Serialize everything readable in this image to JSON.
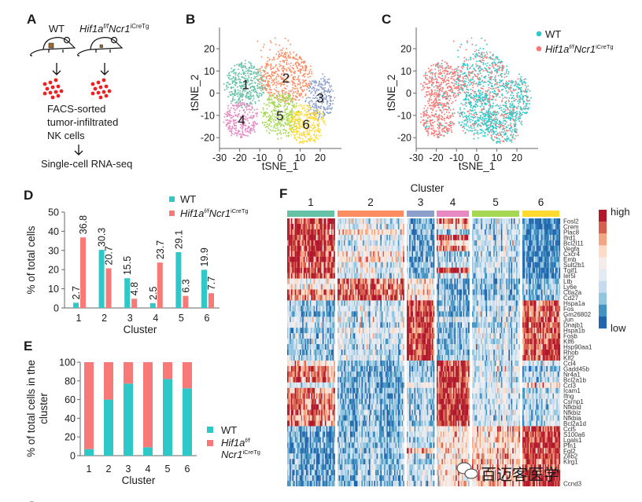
{
  "panel_labels": {
    "A": "A",
    "B": "B",
    "C": "C",
    "D": "D",
    "E": "E",
    "F": "F",
    "next": "C"
  },
  "colors": {
    "wt": "#2ec8c8",
    "mutant": "#f87a78",
    "clusters": [
      "#66c2a5",
      "#fc8d62",
      "#8da0cb",
      "#e78ac3",
      "#a6d854",
      "#ffd92f"
    ],
    "heat_scale": [
      "#b2182b",
      "#d6604d",
      "#f4a582",
      "#fddbc7",
      "#f5ece9",
      "#e3ebf2",
      "#c6dbef",
      "#92c5de",
      "#4393c3",
      "#2166ac"
    ]
  },
  "genotypes": {
    "wt": "WT",
    "mutant": {
      "gene": "Hif1a",
      "gene_sup": "f/f",
      "driver": "Ncr1",
      "driver_sup": "iCreTg"
    }
  },
  "workflow": {
    "step1_lines": [
      "FACS-sorted",
      "tumor-infiltrated",
      "NK cells"
    ],
    "step2": "Single-cell RNA-seq"
  },
  "chart_data": [
    {
      "panel": "B",
      "type": "scatter",
      "xlabel": "tSNE_1",
      "ylabel": "tSNE_2",
      "xticks": [
        -30,
        -20,
        -10,
        0,
        10,
        20
      ],
      "yticks": [
        20,
        10,
        0,
        -10,
        -20
      ],
      "xlim": [
        -30,
        30
      ],
      "ylim": [
        -25,
        30
      ],
      "color_by": "cluster",
      "cluster_labels": [
        "1",
        "2",
        "3",
        "4",
        "5",
        "6"
      ],
      "cluster_centers": [
        [
          -17,
          4
        ],
        [
          3,
          7
        ],
        [
          20,
          -2
        ],
        [
          -19,
          -12
        ],
        [
          0,
          -10
        ],
        [
          13,
          -14
        ]
      ]
    },
    {
      "panel": "C",
      "type": "scatter",
      "xlabel": "tSNE_1",
      "ylabel": "tSNE_2",
      "xticks": [
        -30,
        -20,
        -10,
        0,
        10,
        20
      ],
      "yticks": [
        20,
        10,
        0,
        -10,
        -20
      ],
      "xlim": [
        -30,
        30
      ],
      "ylim": [
        -25,
        30
      ],
      "color_by": "genotype",
      "legend": "top-right"
    },
    {
      "panel": "D",
      "type": "bar",
      "categories": [
        "1",
        "2",
        "3",
        "4",
        "5",
        "6"
      ],
      "series": [
        {
          "name": "WT",
          "values": [
            2.7,
            30.3,
            15.5,
            2.5,
            29.1,
            19.9
          ],
          "labels": [
            "2.7",
            "30.3",
            "15.5",
            "2.5",
            "29.1",
            "19.9"
          ]
        },
        {
          "name": "Hif1a f/f Ncr1 iCreTg",
          "values": [
            36.8,
            20.7,
            4.8,
            23.7,
            6.3,
            7.7
          ],
          "labels": [
            "36.8",
            "20.7",
            "4.8",
            "23.7",
            "6.3",
            "7.7"
          ]
        }
      ],
      "xlabel": "Cluster",
      "ylabel": "% of total cells",
      "ylim": [
        0,
        50
      ],
      "yticks": [
        "0",
        "10",
        "20",
        "30",
        "40",
        "50"
      ],
      "legend": "top-right"
    },
    {
      "panel": "E",
      "type": "bar",
      "stacked": true,
      "categories": [
        "1",
        "2",
        "3",
        "4",
        "5",
        "6"
      ],
      "series": [
        {
          "name": "WT",
          "values": [
            7,
            60,
            77,
            9,
            82,
            72
          ]
        },
        {
          "name": "Hif1a f/f Ncr1 iCreTg",
          "values": [
            93,
            40,
            23,
            91,
            18,
            28
          ]
        }
      ],
      "xlabel": "Cluster",
      "ylabel_lines": [
        "% of total cells in the",
        "cluster"
      ],
      "ylim": [
        0,
        100
      ],
      "yticks": [
        "0",
        "20",
        "40",
        "60",
        "80",
        "100"
      ],
      "legend": "right"
    },
    {
      "panel": "F",
      "type": "heatmap",
      "title": "Cluster",
      "clusters": [
        "1",
        "2",
        "3",
        "4",
        "5",
        "6"
      ],
      "scale_labels": {
        "high": "high",
        "low": "low"
      },
      "genes": [
        "Fosl2",
        "Crem",
        "Plac8",
        "Ifrd1",
        "Bcl2l11",
        "Vegfa",
        "Cxcr4",
        "Emb",
        "Sult2b1",
        "Tgif1",
        "Ier5l",
        "Ltb",
        "Ly6e",
        "Ctla2a",
        "Cd27",
        "Hspa1a",
        "Fos",
        "Gm26802",
        "Jun",
        "Dnajb1",
        "Hspa1b",
        "Fosb",
        "Klf6",
        "Hsp90aa1",
        "Rhob",
        "Klf2",
        "Ccl4",
        "Gadd45b",
        "Nr4a1",
        "Bcl2a1b",
        "Ccl3",
        "Icam1",
        "Ifng",
        "Csrnp1",
        "Nfkbid",
        "Nfkbiz",
        "Nfkbia",
        "Bcl2a1d",
        "Ccl5",
        "S100a6",
        "Lgals1",
        "Pfn1",
        "Fgl2",
        "Zeb2",
        "Klrg1",
        "",
        "",
        "",
        "Ccnd3"
      ],
      "relative_expression": [
        [
          0.9,
          -0.1,
          -0.6,
          0.7,
          -0.3,
          -0.9
        ],
        [
          0.9,
          -0.1,
          -0.6,
          0.3,
          -0.3,
          -0.9
        ],
        [
          0.9,
          0.4,
          -0.6,
          -0.5,
          -0.3,
          -0.9
        ],
        [
          0.9,
          -0.1,
          -0.6,
          0.8,
          -0.3,
          -0.9
        ],
        [
          0.9,
          -0.2,
          -0.6,
          0.3,
          -0.2,
          -0.9
        ],
        [
          0.9,
          -0.1,
          -0.6,
          0.8,
          -0.3,
          -0.9
        ],
        [
          0.9,
          0.2,
          -0.5,
          -0.4,
          -0.3,
          -0.9
        ],
        [
          0.9,
          0.3,
          -0.6,
          -0.3,
          -0.3,
          -0.9
        ],
        [
          0.9,
          -0.1,
          -0.5,
          -0.3,
          -0.3,
          -0.9
        ],
        [
          0.9,
          -0.1,
          -0.6,
          0.9,
          -0.3,
          -0.9
        ],
        [
          0.9,
          -0.2,
          -0.6,
          -0.3,
          -0.3,
          -0.9
        ],
        [
          0.1,
          0.8,
          0.2,
          -0.6,
          -0.5,
          -0.6
        ],
        [
          0.1,
          0.8,
          0.2,
          -0.6,
          -0.5,
          -0.6
        ],
        [
          0.7,
          0.8,
          0.2,
          -0.6,
          -0.5,
          -0.6
        ],
        [
          0.7,
          0.8,
          0.2,
          -0.6,
          -0.5,
          -0.6
        ],
        [
          -0.5,
          -0.2,
          0.95,
          -0.6,
          -0.3,
          0.8
        ],
        [
          -0.5,
          -0.1,
          0.95,
          -0.6,
          -0.3,
          0.8
        ],
        [
          -0.6,
          -0.2,
          0.95,
          -0.7,
          -0.3,
          0.7
        ],
        [
          -0.2,
          -0.1,
          0.95,
          -0.2,
          -0.3,
          0.8
        ],
        [
          -0.2,
          -0.3,
          0.95,
          -0.6,
          -0.3,
          0.8
        ],
        [
          -0.6,
          -0.1,
          0.95,
          -0.6,
          -0.3,
          0.8
        ],
        [
          -0.4,
          -0.2,
          0.95,
          -0.5,
          -0.2,
          0.7
        ],
        [
          -0.4,
          -0.2,
          0.95,
          -0.6,
          -0.3,
          0.8
        ],
        [
          -0.4,
          -0.2,
          0.95,
          -0.6,
          -0.3,
          0.8
        ],
        [
          -0.5,
          -0.3,
          0.95,
          -0.6,
          -0.3,
          0.8
        ],
        [
          -0.4,
          -0.2,
          0.95,
          -0.5,
          -0.3,
          0.8
        ],
        [
          0.2,
          -0.6,
          -0.4,
          0.95,
          -0.2,
          -0.1
        ],
        [
          0.8,
          -0.6,
          -0.4,
          0.95,
          -0.2,
          -0.6
        ],
        [
          0.7,
          -0.6,
          -0.4,
          0.95,
          -0.2,
          -0.4
        ],
        [
          0.7,
          -0.6,
          -0.4,
          0.95,
          -0.2,
          -0.4
        ],
        [
          -0.2,
          -0.6,
          0.1,
          0.95,
          -0.2,
          0.3
        ],
        [
          0.6,
          -0.6,
          -0.4,
          0.95,
          -0.2,
          -0.4
        ],
        [
          0.7,
          -0.6,
          -0.3,
          0.95,
          -0.2,
          -0.2
        ],
        [
          0.7,
          -0.6,
          -0.4,
          0.95,
          -0.2,
          -0.4
        ],
        [
          0.8,
          -0.6,
          -0.4,
          0.95,
          -0.2,
          -0.4
        ],
        [
          0.8,
          -0.6,
          -0.4,
          0.95,
          -0.2,
          -0.4
        ],
        [
          0.6,
          -0.6,
          -0.4,
          0.95,
          -0.2,
          -0.4
        ],
        [
          0.7,
          -0.6,
          -0.4,
          0.95,
          -0.2,
          -0.4
        ],
        [
          -0.6,
          -0.4,
          -0.1,
          0.2,
          0.4,
          0.9
        ],
        [
          -0.7,
          -0.5,
          -0.3,
          0.2,
          0.4,
          0.9
        ],
        [
          -0.7,
          -0.5,
          -0.3,
          0.2,
          0.4,
          0.9
        ],
        [
          -0.7,
          -0.5,
          -0.3,
          0.3,
          0.3,
          0.9
        ],
        [
          -0.7,
          -0.5,
          0.5,
          0.2,
          0.4,
          0.9
        ],
        [
          -0.7,
          -0.5,
          -0.3,
          0.2,
          0.4,
          0.9
        ],
        [
          -0.7,
          -0.5,
          -0.3,
          0.3,
          0.4,
          0.9
        ],
        [
          -0.7,
          -0.5,
          -0.3,
          0.2,
          0.4,
          0.9
        ],
        [
          -0.7,
          -0.4,
          -0.3,
          0.3,
          0.4,
          0.9
        ],
        [
          -0.7,
          -0.5,
          -0.3,
          0.2,
          0.4,
          0.9
        ],
        [
          -0.7,
          -0.5,
          -0.3,
          0.2,
          0.4,
          0.9
        ]
      ]
    }
  ],
  "watermark": "百迈客医学"
}
